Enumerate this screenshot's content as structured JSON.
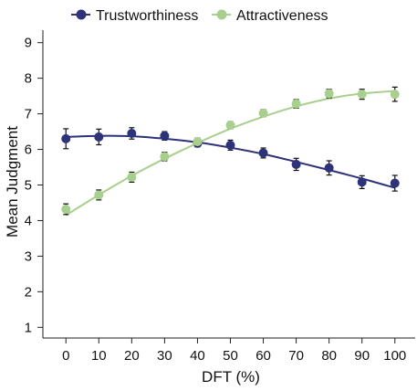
{
  "chart_data": {
    "type": "line",
    "title": "",
    "xlabel": "DFT (%)",
    "ylabel": "Mean Judgment",
    "x": [
      0,
      10,
      20,
      30,
      40,
      50,
      60,
      70,
      80,
      90,
      100
    ],
    "xlim": [
      -7,
      107
    ],
    "ylim": [
      0.7,
      9.3
    ],
    "yticks": [
      1,
      2,
      3,
      4,
      5,
      6,
      7,
      8,
      9
    ],
    "grid": false,
    "legend_position": "top",
    "series": [
      {
        "name": "Trustworthiness",
        "color": "#2e3279",
        "values": [
          6.3,
          6.35,
          6.45,
          6.38,
          6.17,
          6.12,
          5.9,
          5.58,
          5.48,
          5.08,
          5.05
        ],
        "errors": [
          0.28,
          0.22,
          0.16,
          0.12,
          0.1,
          0.14,
          0.14,
          0.17,
          0.2,
          0.18,
          0.22
        ],
        "fit": [
          6.35,
          6.38,
          6.37,
          6.3,
          6.2,
          6.05,
          5.87,
          5.65,
          5.42,
          5.18,
          4.92
        ]
      },
      {
        "name": "Attractiveness",
        "color": "#a9cf8e",
        "values": [
          4.32,
          4.72,
          5.22,
          5.8,
          6.22,
          6.68,
          7.02,
          7.28,
          7.57,
          7.55,
          7.55
        ],
        "errors": [
          0.15,
          0.14,
          0.14,
          0.12,
          0.1,
          0.1,
          0.1,
          0.12,
          0.12,
          0.14,
          0.2
        ],
        "fit": [
          4.15,
          4.72,
          5.26,
          5.74,
          6.18,
          6.58,
          6.92,
          7.21,
          7.43,
          7.57,
          7.64
        ]
      }
    ]
  }
}
